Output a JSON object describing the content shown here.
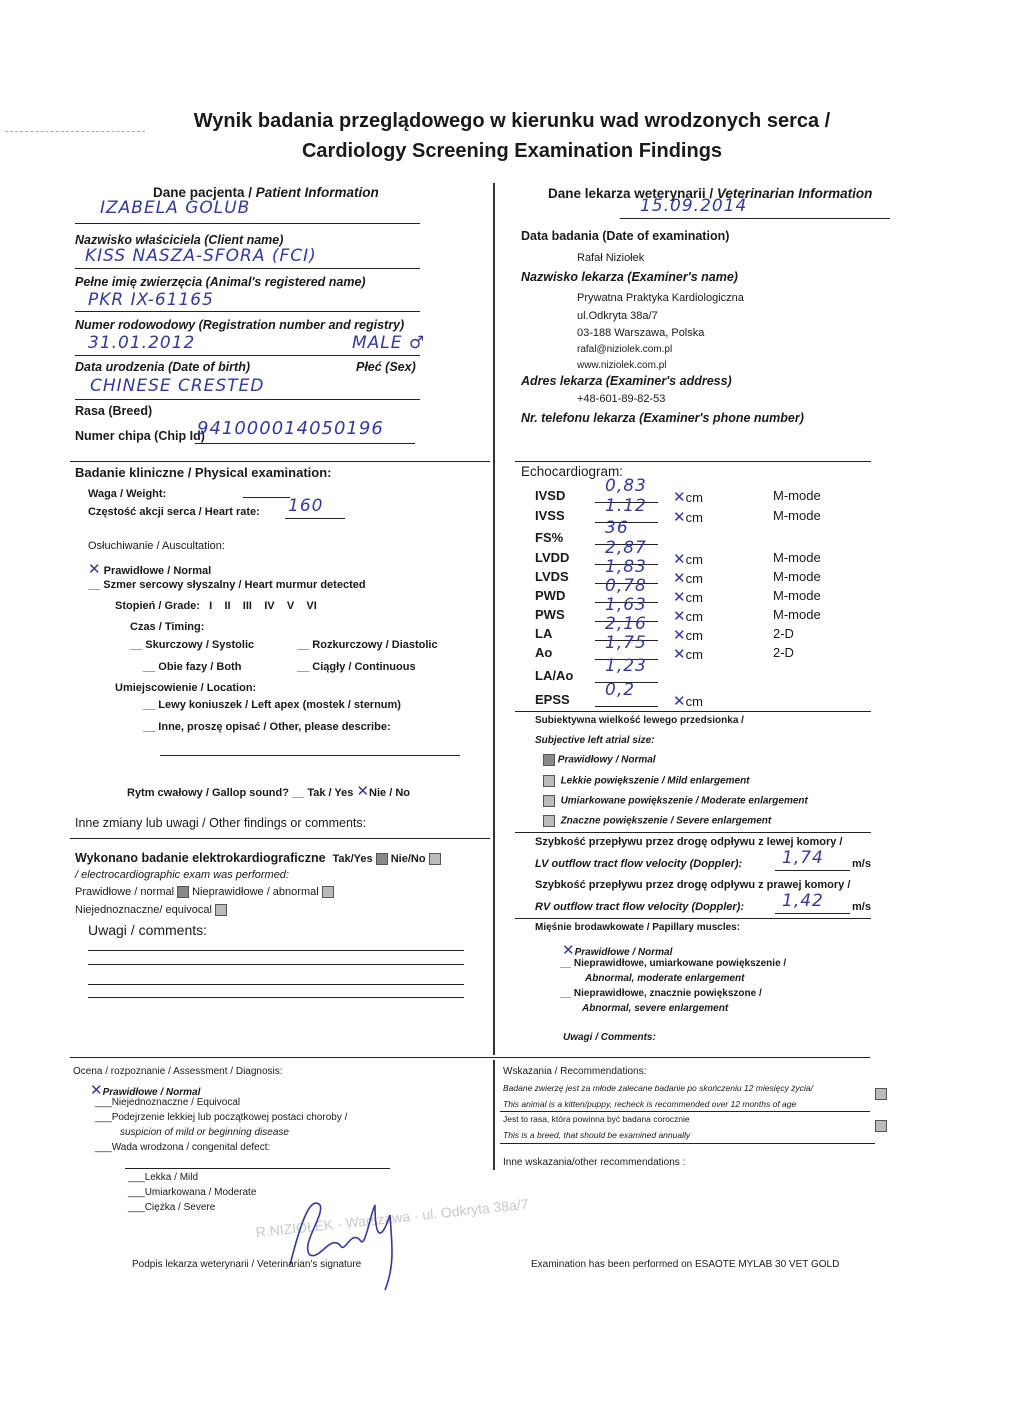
{
  "title": {
    "line1": "Wynik badania przeglądowego w kierunku wad wrodzonych serca /",
    "line2": "Cardiology Screening Examination Findings"
  },
  "patient": {
    "heading": "Dane pacjenta / ",
    "heading_en": "Patient Information",
    "client_value": "IZABELA GOLUB",
    "client_label": "Nazwisko właściciela (Client name)",
    "animal_name_value": "KISS NASZA-SFORA (FCI)",
    "animal_name_label": "Pełne imię zwierzęcia (Animal's registered name)",
    "registration_value": "PKR IX-61165",
    "registration_label": "Numer rodowodowy (Registration number and registry)",
    "dob_value": "31.01.2012",
    "sex_value": "MALE ♂",
    "dob_label": "Data urodzenia (Date of birth)",
    "sex_label": "Płeć (Sex)",
    "breed_value": "CHINESE CRESTED",
    "breed_label": "Rasa (Breed)",
    "chip_label": "Numer chipa (Chip Id)",
    "chip_value": "941000014050196"
  },
  "vet": {
    "heading": "Dane lekarza weterynarii / ",
    "heading_en": "Veterinarian Information",
    "exam_date_value": "15.09.2014",
    "exam_date_label": "Data badania (Date of examination)",
    "name_value": "Rafał Niziołek",
    "name_label": "Nazwisko lekarza (Examiner's name)",
    "address_lines": [
      "Prywatna Praktyka Kardiologiczna",
      "ul.Odkryta 38a/7",
      "03-188 Warszawa, Polska",
      "rafal@niziolek.com.pl",
      "www.niziolek.com.pl"
    ],
    "address_label": "Adres lekarza (Examiner's address)",
    "phone_value": "+48-601-89-82-53",
    "phone_label": "Nr. telefonu lekarza (Examiner's phone number)"
  },
  "physical": {
    "heading": "Badanie kliniczne / Physical examination:",
    "weight_label": "Waga / Weight:",
    "weight_value": "",
    "hr_label": "Częstość akcji serca / Heart rate:",
    "hr_value": "160",
    "auscultation_label": "Osłuchiwanie / Auscultation:",
    "normal": "Prawidłowe / Normal",
    "normal_checked": true,
    "murmur": "Szmer sercowy słyszalny / Heart murmur detected",
    "grade_label": "Stopień / Grade:",
    "grades": [
      "I",
      "II",
      "III",
      "IV",
      "V",
      "VI"
    ],
    "timing_label": "Czas / Timing:",
    "systolic": "Skurczowy / Systolic",
    "diastolic": "Rozkurczowy / Diastolic",
    "both": "Obie fazy / Both",
    "continuous": "Ciągły / Continuous",
    "location_label": "Umiejscowienie / Location:",
    "left_apex": "Lewy koniuszek / Left apex (mostek / sternum)",
    "other": "Inne, proszę opisać / Other, please describe:",
    "gallop": "Rytm cwałowy / Gallop sound?",
    "gallop_yes": "Tak / Yes",
    "gallop_no": "Nie / No",
    "gallop_value": "No",
    "other_findings": "Inne zmiany lub uwagi / Other findings or comments:",
    "ecg_label": "Wykonano badanie elektrokardiograficzne",
    "ecg_yes": "Tak/Yes",
    "ecg_no": "Nie/No",
    "ecg_value": "Yes",
    "ecg_label_en": "/ electrocardiographic exam was performed:",
    "ecg_normal": "Prawidłowe / normal",
    "ecg_abnormal": "Nieprawidłowe / abnormal",
    "ecg_equivocal": "Niejednoznaczne/ equivocal",
    "ecg_result": "normal",
    "comments_label": "Uwagi / comments:"
  },
  "echo": {
    "heading": "Echocardiogram:",
    "rows": [
      {
        "label": "IVSD",
        "value": "0,83",
        "unit": "cm",
        "mode": "M-mode"
      },
      {
        "label": "IVSS",
        "value": "1.12",
        "unit": "cm",
        "mode": "M-mode"
      },
      {
        "label": "FS%",
        "value": "36",
        "unit": "",
        "mode": ""
      },
      {
        "label": "LVDD",
        "value": "2,87",
        "unit": "cm",
        "mode": "M-mode"
      },
      {
        "label": "LVDS",
        "value": "1,83",
        "unit": "cm",
        "mode": "M-mode"
      },
      {
        "label": "PWD",
        "value": "0,78",
        "unit": "cm",
        "mode": "M-mode"
      },
      {
        "label": "PWS",
        "value": "1,63",
        "unit": "cm",
        "mode": "M-mode"
      },
      {
        "label": "LA",
        "value": "2,16",
        "unit": "cm",
        "mode": "2-D"
      },
      {
        "label": "Ao",
        "value": "1,75",
        "unit": "cm",
        "mode": "2-D"
      },
      {
        "label": "LA/Ao",
        "value": "1,23",
        "unit": "",
        "mode": ""
      },
      {
        "label": "EPSS",
        "value": "0,2",
        "unit": "cm",
        "mode": ""
      }
    ],
    "la_size_label": "Subiektywna wielkość lewego przedsionka /",
    "la_size_label_en": "Subjective left atrial size:",
    "la_options": [
      "Prawidłowy / Normal",
      "Lekkie powiększenie / Mild enlargement",
      "Umiarkowane powiększenie / Moderate enlargement",
      "Znaczne powiększenie / Severe enlargement"
    ],
    "la_selected": "Prawidłowy / Normal",
    "lv_pl": "Szybkość przepływu przez drogę odpływu z lewej komory /",
    "lv_en": "LV outflow tract flow velocity (Doppler):",
    "lv_value": "1,74",
    "lv_unit": "m/s",
    "rv_pl": "Szybkość przepływu przez drogę odpływu z prawej komory /",
    "rv_en": "RV outflow tract flow velocity (Doppler):",
    "rv_value": "1,42",
    "rv_unit": "m/s",
    "papillary_label": "Mięśnie brodawkowate / Papillary muscles:",
    "pap_normal": "Prawidłowe / Normal",
    "pap_moderate_pl": "Nieprawidłowe, umiarkowane powiększenie /",
    "pap_moderate_en": "Abnormal, moderate enlargement",
    "pap_severe_pl": "Nieprawidłowe, znacznie powiększone /",
    "pap_severe_en": "Abnormal, severe enlargement",
    "pap_selected": "Normal",
    "comments_label": "Uwagi / Comments:"
  },
  "assessment": {
    "label": "Ocena / rozpoznanie / Assessment / Diagnosis:",
    "normal": "Prawidłowe / Normal",
    "selected": "Normal",
    "equivocal": "Niejednoznaczne / Equivocal",
    "suspicion_pl": "Podejrzenie lekkiej lub początkowej postaci choroby /",
    "suspicion_en": "suspicion of mild or beginning disease",
    "congenital": "Wada wrodzona / congenital defect:",
    "mild": "Lekka / Mild",
    "moderate": "Umiarkowana / Moderate",
    "severe": "Ciężka / Severe",
    "signature_label": "Podpis lekarza weterynarii / Veterinarian's signature"
  },
  "recommendations": {
    "label": "Wskazania / Recommendations:",
    "kitten_pl": "Badane zwierzę jest za młode zalecane badanie po skończeniu 12 miesięcy życia/",
    "kitten_en": "This animal  is a kitten/puppy, recheck is recommended over 12 months of age",
    "breed_pl": "Jest to rasa, która powinna być badana corocznie",
    "breed_en": "This is a breed, that should be examined annually",
    "other": "Inne wskazania/other recommendations :",
    "equipment": "Examination has been performed on ESAOTE MYLAB 30 VET GOLD"
  },
  "colors": {
    "ink": "#35399a",
    "text": "#1a1a1a"
  }
}
